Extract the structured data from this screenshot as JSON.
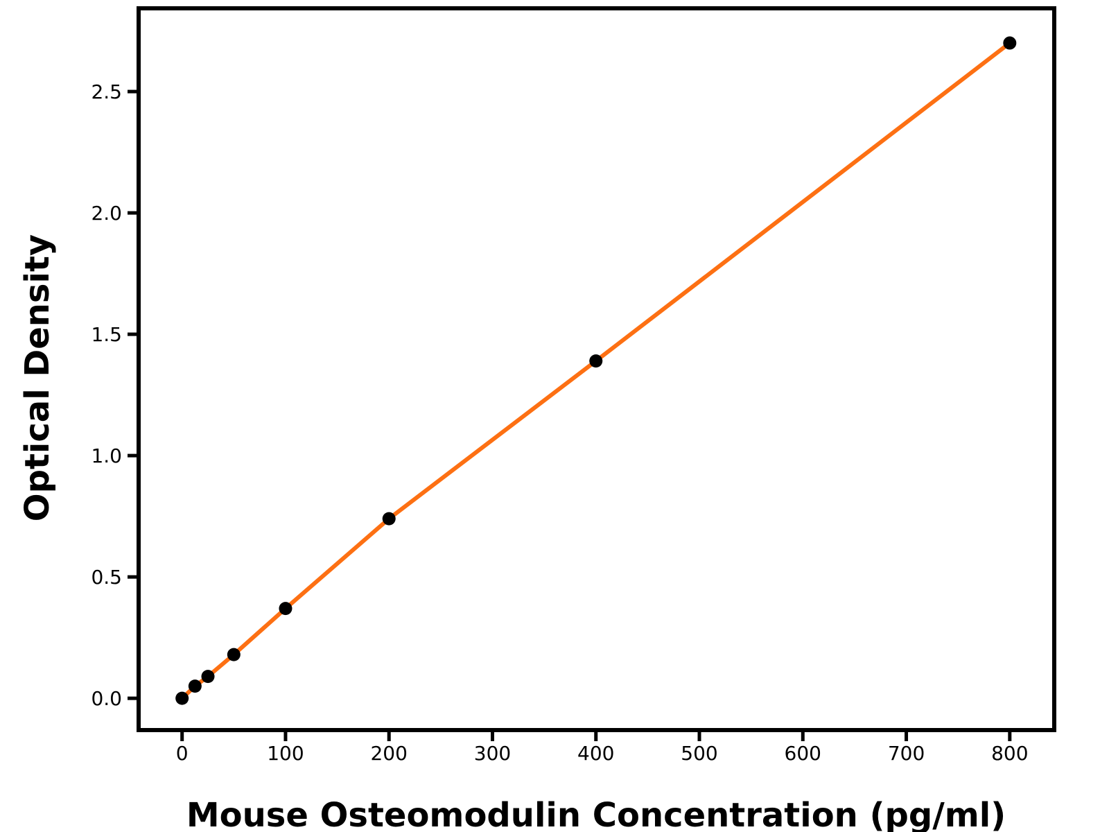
{
  "figure": {
    "background": "#ffffff"
  },
  "chart_data": {
    "type": "line",
    "title": "",
    "xlabel": "Mouse Osteomodulin Concentration (pg/ml)",
    "ylabel": "Optical Density",
    "x": [
      0,
      12.5,
      25,
      50,
      100,
      200,
      400,
      800
    ],
    "y": [
      0.0,
      0.05,
      0.09,
      0.18,
      0.37,
      0.74,
      1.39,
      2.7
    ],
    "xticks": [
      "0",
      "100",
      "200",
      "300",
      "400",
      "500",
      "600",
      "700",
      "800"
    ],
    "yticks": [
      "0.0",
      "0.5",
      "1.0",
      "1.5",
      "2.0",
      "2.5"
    ],
    "xlim": [
      -42,
      843
    ],
    "ylim": [
      -0.131,
      2.843
    ],
    "grid": false,
    "legend_position": "none",
    "line_color": "#fd7013",
    "marker_color": "#000000",
    "axis_color": "#000000"
  }
}
